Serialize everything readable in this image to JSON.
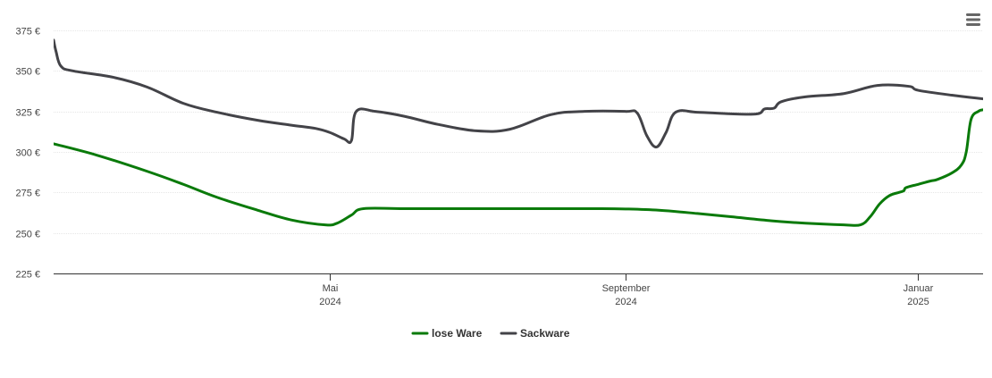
{
  "chart_data": {
    "type": "line",
    "title": "",
    "xlabel": "",
    "ylabel": "",
    "ylim": [
      225,
      375
    ],
    "y_ticks": [
      "375 €",
      "350 €",
      "325 €",
      "300 €",
      "275 €",
      "250 €",
      "225 €"
    ],
    "y_tick_values": [
      375,
      350,
      325,
      300,
      275,
      250,
      225
    ],
    "x_range": [
      "2024-01-07",
      "2025-01-28"
    ],
    "x_ticks": [
      {
        "date": "2024-05-01",
        "label_top": "Mai",
        "label_bottom": "2024"
      },
      {
        "date": "2024-09-01",
        "label_top": "September",
        "label_bottom": "2024"
      },
      {
        "date": "2025-01-01",
        "label_top": "Januar",
        "label_bottom": "2025"
      }
    ],
    "grid": true,
    "legend_position": "bottom-center",
    "series": [
      {
        "name": "lose Ware",
        "color": "#0a7a0a",
        "points": [
          [
            "2024-01-07",
            305
          ],
          [
            "2024-01-25",
            298
          ],
          [
            "2024-02-15",
            288
          ],
          [
            "2024-03-01",
            280
          ],
          [
            "2024-03-15",
            272
          ],
          [
            "2024-04-01",
            264
          ],
          [
            "2024-04-15",
            258
          ],
          [
            "2024-04-29",
            255
          ],
          [
            "2024-05-04",
            256
          ],
          [
            "2024-05-10",
            261
          ],
          [
            "2024-05-15",
            265
          ],
          [
            "2024-06-01",
            265
          ],
          [
            "2024-07-01",
            265
          ],
          [
            "2024-08-01",
            265
          ],
          [
            "2024-08-20",
            265
          ],
          [
            "2024-09-01",
            264.8
          ],
          [
            "2024-09-15",
            264
          ],
          [
            "2024-10-01",
            262
          ],
          [
            "2024-10-15",
            260
          ],
          [
            "2024-11-01",
            257.5
          ],
          [
            "2024-11-15",
            256
          ],
          [
            "2024-12-01",
            255
          ],
          [
            "2024-12-08",
            255
          ],
          [
            "2024-12-12",
            260
          ],
          [
            "2024-12-16",
            268
          ],
          [
            "2024-12-20",
            273
          ],
          [
            "2024-12-24",
            275
          ],
          [
            "2024-12-26",
            276
          ],
          [
            "2024-12-27",
            278
          ],
          [
            "2025-01-01",
            280
          ],
          [
            "2025-01-06",
            282
          ],
          [
            "2025-01-09",
            283
          ],
          [
            "2025-01-15",
            287
          ],
          [
            "2025-01-19",
            292
          ],
          [
            "2025-01-21",
            300
          ],
          [
            "2025-01-23",
            320
          ],
          [
            "2025-01-26",
            325
          ],
          [
            "2025-01-28",
            326
          ]
        ]
      },
      {
        "name": "Sackware",
        "color": "#434348",
        "points": [
          [
            "2024-01-07",
            369
          ],
          [
            "2024-01-08",
            362
          ],
          [
            "2024-01-10",
            353
          ],
          [
            "2024-01-15",
            350
          ],
          [
            "2024-02-01",
            346
          ],
          [
            "2024-02-15",
            340
          ],
          [
            "2024-03-01",
            330
          ],
          [
            "2024-03-15",
            324.5
          ],
          [
            "2024-04-01",
            319.5
          ],
          [
            "2024-04-15",
            316.5
          ],
          [
            "2024-04-25",
            314.5
          ],
          [
            "2024-05-01",
            312
          ],
          [
            "2024-05-07",
            308
          ],
          [
            "2024-05-10",
            307
          ],
          [
            "2024-05-12",
            325
          ],
          [
            "2024-05-20",
            325
          ],
          [
            "2024-06-01",
            322
          ],
          [
            "2024-06-15",
            317
          ],
          [
            "2024-07-01",
            313
          ],
          [
            "2024-07-15",
            314
          ],
          [
            "2024-08-01",
            323
          ],
          [
            "2024-08-15",
            325
          ],
          [
            "2024-09-01",
            325
          ],
          [
            "2024-09-06",
            324
          ],
          [
            "2024-09-10",
            310
          ],
          [
            "2024-09-14",
            303
          ],
          [
            "2024-09-18",
            312
          ],
          [
            "2024-09-22",
            324.5
          ],
          [
            "2024-10-01",
            324.5
          ],
          [
            "2024-10-15",
            323.5
          ],
          [
            "2024-10-26",
            323.5
          ],
          [
            "2024-10-29",
            326.5
          ],
          [
            "2024-11-02",
            327
          ],
          [
            "2024-11-05",
            331
          ],
          [
            "2024-11-15",
            334
          ],
          [
            "2024-12-01",
            336
          ],
          [
            "2024-12-15",
            341
          ],
          [
            "2024-12-28",
            340.5
          ],
          [
            "2025-01-01",
            338
          ],
          [
            "2025-01-15",
            335
          ],
          [
            "2025-01-30",
            332.5
          ],
          [
            "2025-02-05",
            332.3
          ]
        ]
      }
    ]
  },
  "menu": {
    "icon": "hamburger-menu-icon"
  }
}
